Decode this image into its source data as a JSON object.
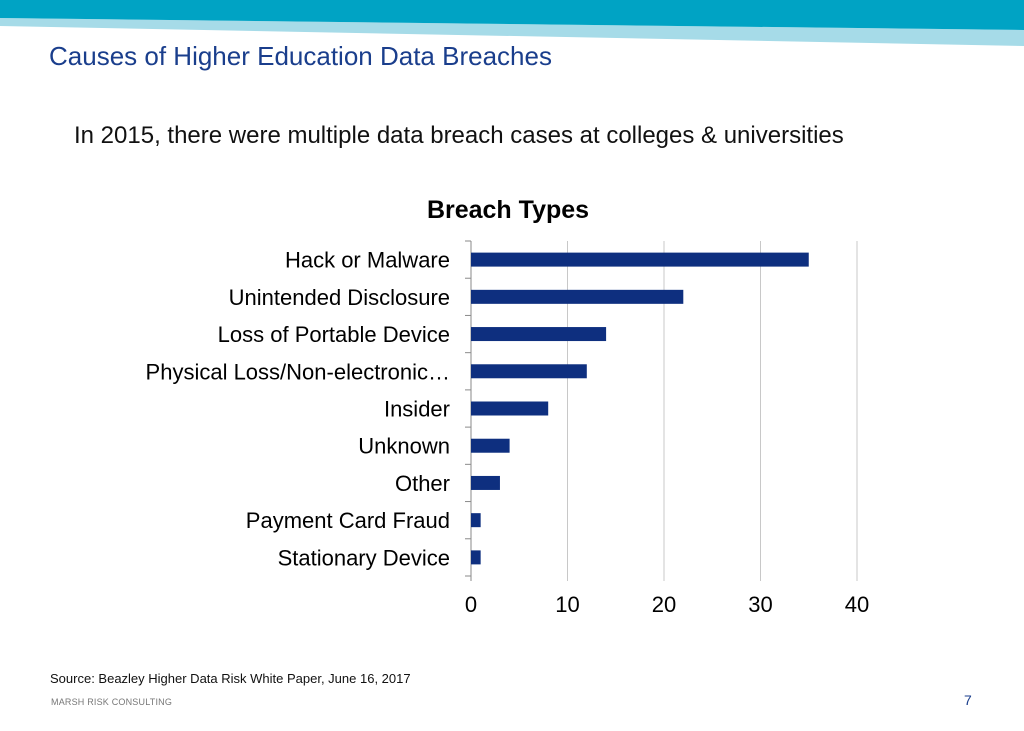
{
  "slide": {
    "title": "Causes of Higher Education Data Breaches",
    "subtitle": "In 2015, there were multiple data breach cases at colleges & universities",
    "source": "Source: Beazley Higher Data Risk White Paper, June 16, 2017",
    "footer_brand": "MARSH RISK CONSULTING",
    "page_number": "7"
  },
  "colors": {
    "banner_dark": "#00a3c4",
    "banner_light": "#a6dbe8",
    "title": "#1a3e8c",
    "bar": "#0e2f7f",
    "gridline": "#c8c8c8"
  },
  "chart_data": {
    "type": "bar",
    "orientation": "horizontal",
    "title": "Breach Types",
    "categories": [
      "Hack or Malware",
      "Unintended Disclosure",
      "Loss of Portable Device",
      "Physical Loss/Non-electronic…",
      "Insider",
      "Unknown",
      "Other",
      "Payment Card Fraud",
      "Stationary Device"
    ],
    "values": [
      35,
      22,
      14,
      12,
      8,
      4,
      3,
      1,
      1
    ],
    "xlim": [
      0,
      40
    ],
    "xticks": [
      0,
      10,
      20,
      30,
      40
    ],
    "xlabel": "",
    "ylabel": "",
    "grid": "vertical",
    "legend": "none"
  }
}
